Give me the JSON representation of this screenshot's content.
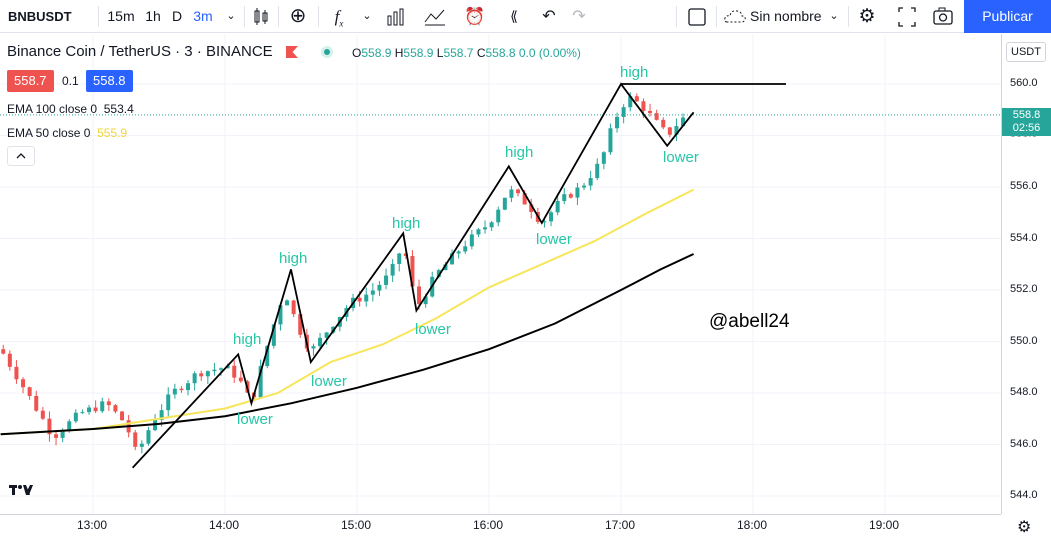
{
  "toolbar": {
    "symbol": "BNBUSDT",
    "intervals": [
      "15m",
      "1h",
      "D",
      "3m"
    ],
    "active_interval": "3m",
    "layout_name": "Sin nombre",
    "publish": "Publicar"
  },
  "legend": {
    "title": "Binance Coin / TetherUS · 3 · BINANCE",
    "o_label": "O",
    "o_value": "558.9",
    "h_label": "H",
    "h_value": "558.9",
    "l_label": "L",
    "l_value": "558.7",
    "c_label": "C",
    "c_value": "558.8",
    "change": "0.0 (0.00%)",
    "bid": "558.7",
    "spread": "0.1",
    "ask": "558.8",
    "ema100_label": "EMA 100 close 0",
    "ema100_value": "553.4",
    "ema50_label": "EMA 50 close 0",
    "ema50_value": "555.9"
  },
  "price_scale": {
    "currency": "USDT",
    "ticks": [
      "560.0",
      "558.0",
      "556.0",
      "554.0",
      "552.0",
      "550.0",
      "548.0",
      "546.0",
      "544.0"
    ],
    "last_price": "558.8",
    "countdown": "02:56"
  },
  "time_scale": {
    "ticks": [
      "13:00",
      "14:00",
      "15:00",
      "16:00",
      "17:00",
      "18:00",
      "19:00"
    ]
  },
  "annotations": {
    "highs": [
      "high",
      "high",
      "high",
      "high",
      "high"
    ],
    "lowers": [
      "lower",
      "lower",
      "lower",
      "lower",
      "lower"
    ],
    "watermark": "@abell24"
  },
  "colors": {
    "up": "#26a69a",
    "down": "#ef5350",
    "ema50": "#f7e55a",
    "ema100": "#000000",
    "accent": "#2962ff"
  }
}
